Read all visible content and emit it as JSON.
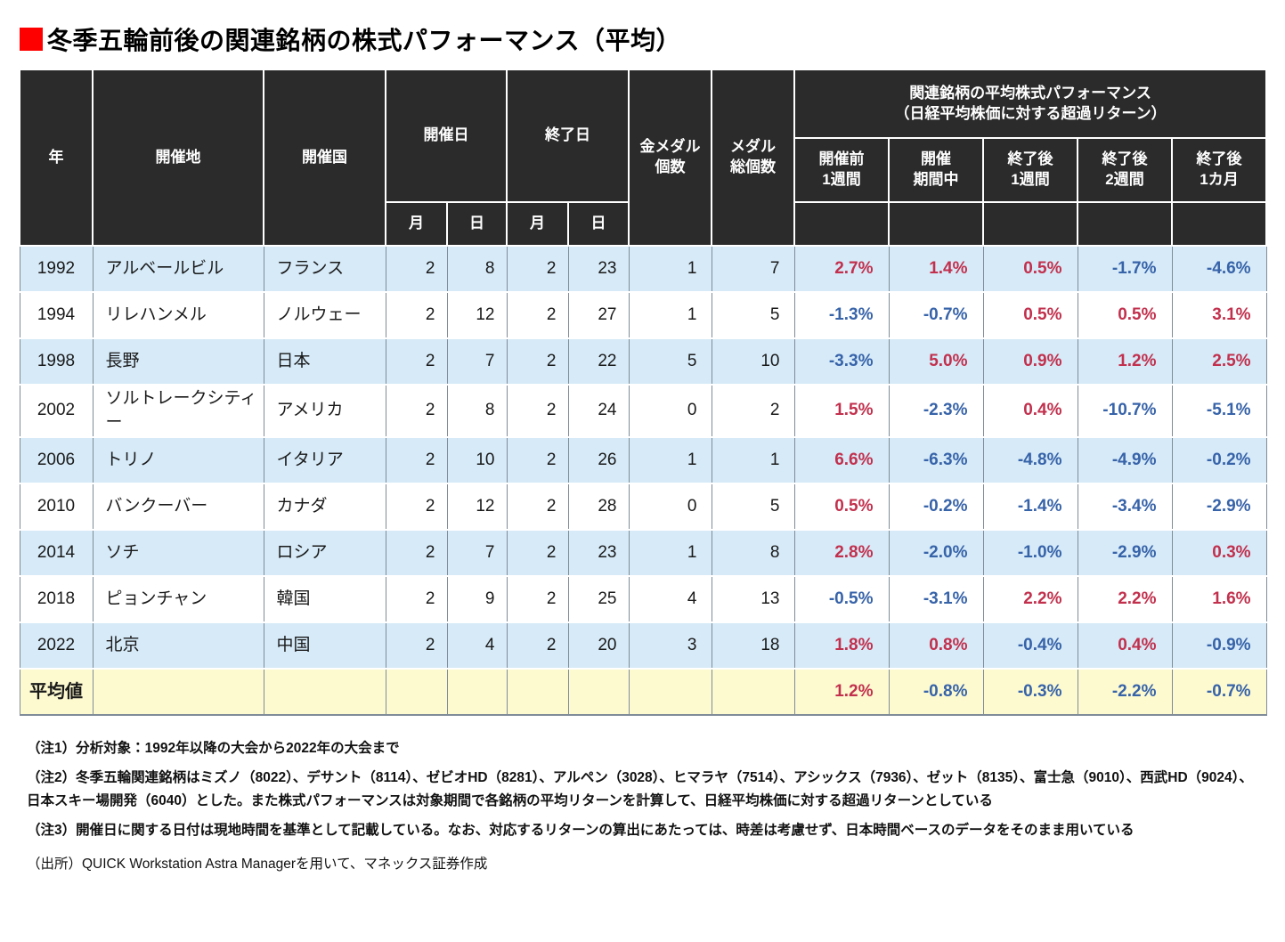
{
  "title": "冬季五輪前後の関連銘柄の株式パフォーマンス（平均）",
  "colors": {
    "accent_red": "#ff0000",
    "header_bg": "#2b2b2b",
    "row_alt_bg": "#d6eaf8",
    "average_row_bg": "#fdfad0",
    "positive_color": "#c2304d",
    "negative_color": "#3763a9",
    "border_color": "#7f8c99"
  },
  "chart_data": {
    "type": "table",
    "title": "冬季五輪前後の関連銘柄の株式パフォーマンス（平均）",
    "header": {
      "year": "年",
      "host_city": "開催地",
      "host_country": "開催国",
      "start_date": "開催日",
      "end_date": "終了日",
      "month": "月",
      "day": "日",
      "gold_medals": "金メダル\n個数",
      "total_medals": "メダル\n総個数",
      "performance_group": "関連銘柄の平均株式パフォーマンス\n（日経平均株価に対する超過リターン）",
      "performance_periods": [
        "開催前\n1週間",
        "開催\n期間中",
        "終了後\n1週間",
        "終了後\n2週間",
        "終了後\n1カ月"
      ]
    },
    "rows": [
      {
        "year": "1992",
        "city": "アルベールビル",
        "country": "フランス",
        "start_month": "2",
        "start_day": "8",
        "end_month": "2",
        "end_day": "23",
        "gold_medals": "1",
        "total_medals": "7",
        "performance": [
          "2.7%",
          "1.4%",
          "0.5%",
          "-1.7%",
          "-4.6%"
        ]
      },
      {
        "year": "1994",
        "city": "リレハンメル",
        "country": "ノルウェー",
        "start_month": "2",
        "start_day": "12",
        "end_month": "2",
        "end_day": "27",
        "gold_medals": "1",
        "total_medals": "5",
        "performance": [
          "-1.3%",
          "-0.7%",
          "0.5%",
          "0.5%",
          "3.1%"
        ]
      },
      {
        "year": "1998",
        "city": "長野",
        "country": "日本",
        "start_month": "2",
        "start_day": "7",
        "end_month": "2",
        "end_day": "22",
        "gold_medals": "5",
        "total_medals": "10",
        "performance": [
          "-3.3%",
          "5.0%",
          "0.9%",
          "1.2%",
          "2.5%"
        ]
      },
      {
        "year": "2002",
        "city": "ソルトレークシティー",
        "country": "アメリカ",
        "start_month": "2",
        "start_day": "8",
        "end_month": "2",
        "end_day": "24",
        "gold_medals": "0",
        "total_medals": "2",
        "performance": [
          "1.5%",
          "-2.3%",
          "0.4%",
          "-10.7%",
          "-5.1%"
        ]
      },
      {
        "year": "2006",
        "city": "トリノ",
        "country": "イタリア",
        "start_month": "2",
        "start_day": "10",
        "end_month": "2",
        "end_day": "26",
        "gold_medals": "1",
        "total_medals": "1",
        "performance": [
          "6.6%",
          "-6.3%",
          "-4.8%",
          "-4.9%",
          "-0.2%"
        ]
      },
      {
        "year": "2010",
        "city": "バンクーバー",
        "country": "カナダ",
        "start_month": "2",
        "start_day": "12",
        "end_month": "2",
        "end_day": "28",
        "gold_medals": "0",
        "total_medals": "5",
        "performance": [
          "0.5%",
          "-0.2%",
          "-1.4%",
          "-3.4%",
          "-2.9%"
        ]
      },
      {
        "year": "2014",
        "city": "ソチ",
        "country": "ロシア",
        "start_month": "2",
        "start_day": "7",
        "end_month": "2",
        "end_day": "23",
        "gold_medals": "1",
        "total_medals": "8",
        "performance": [
          "2.8%",
          "-2.0%",
          "-1.0%",
          "-2.9%",
          "0.3%"
        ]
      },
      {
        "year": "2018",
        "city": "ピョンチャン",
        "country": "韓国",
        "start_month": "2",
        "start_day": "9",
        "end_month": "2",
        "end_day": "25",
        "gold_medals": "4",
        "total_medals": "13",
        "performance": [
          "-0.5%",
          "-3.1%",
          "2.2%",
          "2.2%",
          "1.6%"
        ]
      },
      {
        "year": "2022",
        "city": "北京",
        "country": "中国",
        "start_month": "2",
        "start_day": "4",
        "end_month": "2",
        "end_day": "20",
        "gold_medals": "3",
        "total_medals": "18",
        "performance": [
          "1.8%",
          "0.8%",
          "-0.4%",
          "0.4%",
          "-0.9%"
        ]
      }
    ],
    "average": {
      "label": "平均値",
      "performance": [
        "1.2%",
        "-0.8%",
        "-0.3%",
        "-2.2%",
        "-0.7%"
      ]
    }
  },
  "notes": {
    "note1": "（注1）分析対象：1992年以降の大会から2022年の大会まで",
    "note2": "（注2）冬季五輪関連銘柄はミズノ（8022）、デサント（8114）、ゼビオHD（8281）、アルペン（3028）、ヒマラヤ（7514）、アシックス（7936）、ゼット（8135）、富士急（9010）、西武HD（9024）、日本スキー場開発（6040）とした。また株式パフォーマンスは対象期間で各銘柄の平均リターンを計算して、日経平均株価に対する超過リターンとしている",
    "note3": "（注3）開催日に関する日付は現地時間を基準として記載している。なお、対応するリターンの算出にあたっては、時差は考慮せず、日本時間ベースのデータをそのまま用いている",
    "source": "（出所）QUICK Workstation Astra Managerを用いて、マネックス証券作成"
  }
}
